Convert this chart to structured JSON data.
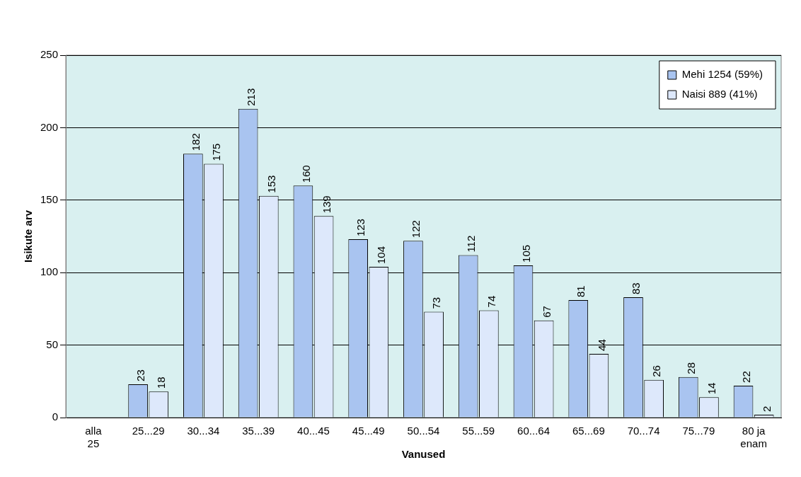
{
  "chart_data": {
    "type": "bar",
    "xlabel": "Vanused",
    "ylabel": "Isikute arv",
    "categories": [
      "alla 25",
      "25...29",
      "30...34",
      "35...39",
      "40...45",
      "45...49",
      "50...54",
      "55...59",
      "60...64",
      "65...69",
      "70...74",
      "75...79",
      "80 ja enam"
    ],
    "series": [
      {
        "name": "Mehi 1254 (59%)",
        "color": "#a9c4f0",
        "values": [
          null,
          23,
          182,
          213,
          160,
          123,
          122,
          112,
          105,
          81,
          83,
          28,
          22
        ]
      },
      {
        "name": "Naisi 889 (41%)",
        "color": "#dde8fb",
        "values": [
          null,
          18,
          175,
          153,
          139,
          104,
          73,
          74,
          67,
          44,
          26,
          14,
          2
        ]
      }
    ],
    "ylim": [
      0,
      250
    ],
    "yticks": [
      0,
      50,
      100,
      150,
      200,
      250
    ],
    "grid": "y",
    "legend": "top right",
    "data_labels": true
  }
}
